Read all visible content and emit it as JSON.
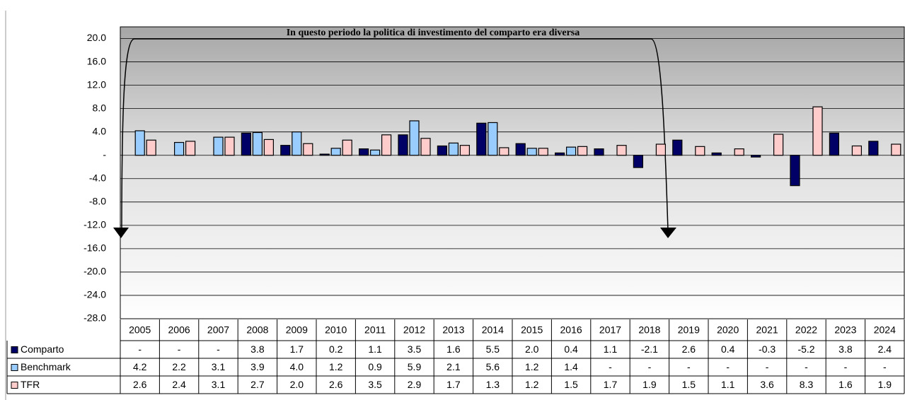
{
  "chart_data": {
    "type": "bar",
    "annotation": "In questo periodo la politica di investimento del comparto era diversa",
    "categories": [
      "2005",
      "2006",
      "2007",
      "2008",
      "2009",
      "2010",
      "2011",
      "2012",
      "2013",
      "2014",
      "2015",
      "2016",
      "2017",
      "2018",
      "2019",
      "2020",
      "2021",
      "2022",
      "2023",
      "2024"
    ],
    "series": [
      {
        "name": "Comparto",
        "color": "#000066",
        "values": [
          null,
          null,
          null,
          3.8,
          1.7,
          0.2,
          1.1,
          3.5,
          1.6,
          5.5,
          2.0,
          0.4,
          1.1,
          -2.1,
          2.6,
          0.4,
          -0.3,
          -5.2,
          3.8,
          2.4
        ],
        "value_labels": [
          "-",
          "-",
          "-",
          "3.8",
          "1.7",
          "0.2",
          "1.1",
          "3.5",
          "1.6",
          "5.5",
          "2.0",
          "0.4",
          "1.1",
          "-2.1",
          "2.6",
          "0.4",
          "-0.3",
          "-5.2",
          "3.8",
          "2.4"
        ]
      },
      {
        "name": "Benchmark",
        "color": "#99ccff",
        "values": [
          4.2,
          2.2,
          3.1,
          3.9,
          4.0,
          1.2,
          0.9,
          5.9,
          2.1,
          5.6,
          1.2,
          1.4,
          null,
          null,
          null,
          null,
          null,
          null,
          null,
          null
        ],
        "value_labels": [
          "4.2",
          "2.2",
          "3.1",
          "3.9",
          "4.0",
          "1.2",
          "0.9",
          "5.9",
          "2.1",
          "5.6",
          "1.2",
          "1.4",
          "-",
          "-",
          "-",
          "-",
          "-",
          "-",
          "-",
          "-"
        ]
      },
      {
        "name": "TFR",
        "color": "#ffcccc",
        "values": [
          2.6,
          2.4,
          3.1,
          2.7,
          2.0,
          2.6,
          3.5,
          2.9,
          1.7,
          1.3,
          1.2,
          1.5,
          1.7,
          1.9,
          1.5,
          1.1,
          3.6,
          8.3,
          1.6,
          1.9
        ],
        "value_labels": [
          "2.6",
          "2.4",
          "3.1",
          "2.7",
          "2.0",
          "2.6",
          "3.5",
          "2.9",
          "1.7",
          "1.3",
          "1.2",
          "1.5",
          "1.7",
          "1.9",
          "1.5",
          "1.1",
          "3.6",
          "8.3",
          "1.6",
          "1.9"
        ]
      }
    ],
    "ylim": [
      -28,
      22
    ],
    "yticks": [
      {
        "value": 20,
        "label": "20.0"
      },
      {
        "value": 16,
        "label": "16.0"
      },
      {
        "value": 12,
        "label": "12.0"
      },
      {
        "value": 8,
        "label": "8.0"
      },
      {
        "value": 4,
        "label": "4.0"
      },
      {
        "value": 0,
        "label": "-"
      },
      {
        "value": -4,
        "label": "-4.0"
      },
      {
        "value": -8,
        "label": "-8.0"
      },
      {
        "value": -12,
        "label": "-12.0"
      },
      {
        "value": -16,
        "label": "-16.0"
      },
      {
        "value": -20,
        "label": "-20.0"
      },
      {
        "value": -24,
        "label": "-24.0"
      },
      {
        "value": -28,
        "label": "-28.0"
      }
    ],
    "grid": true
  }
}
